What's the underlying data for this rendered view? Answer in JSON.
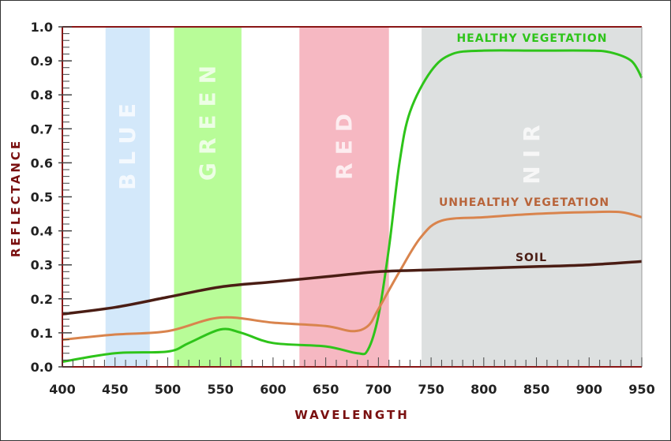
{
  "chart_data": {
    "type": "line",
    "title": "",
    "xlabel": "WAVELENGTH",
    "ylabel": "REFLECTANCE",
    "xlim": [
      400,
      950
    ],
    "ylim": [
      0,
      1.0
    ],
    "grid": false,
    "x_ticks": [
      "400",
      "450",
      "500",
      "550",
      "600",
      "650",
      "700",
      "750",
      "800",
      "850",
      "900",
      "950"
    ],
    "y_ticks": [
      "0.0",
      "0.1",
      "0.2",
      "0.3",
      "0.4",
      "0.5",
      "0.6",
      "0.7",
      "0.8",
      "0.9",
      "1.0"
    ],
    "bands": [
      {
        "name": "BLUE",
        "range": [
          441,
          483
        ],
        "color": "#d3e8fa"
      },
      {
        "name": "GREEN",
        "range": [
          506,
          570
        ],
        "color": "#b8fc98"
      },
      {
        "name": "RED",
        "range": [
          625,
          710
        ],
        "color": "#f6b8c2"
      },
      {
        "name": "NIR",
        "range": [
          741,
          950
        ],
        "color": "#dde0e0"
      }
    ],
    "series": [
      {
        "name": "HEALTHY VEGETATION",
        "color": "#2ec41a",
        "x": [
          400,
          450,
          500,
          520,
          550,
          570,
          600,
          650,
          680,
          690,
          700,
          710,
          720,
          730,
          750,
          770,
          800,
          850,
          900,
          920,
          940,
          950
        ],
        "y": [
          0.015,
          0.04,
          0.045,
          0.07,
          0.11,
          0.1,
          0.07,
          0.06,
          0.04,
          0.05,
          0.15,
          0.35,
          0.6,
          0.75,
          0.87,
          0.92,
          0.93,
          0.93,
          0.93,
          0.925,
          0.9,
          0.85
        ]
      },
      {
        "name": "UNHEALTHY VEGETATION",
        "color": "#d9844d",
        "x": [
          400,
          450,
          500,
          550,
          600,
          650,
          675,
          690,
          700,
          720,
          740,
          760,
          800,
          850,
          900,
          930,
          950
        ],
        "y": [
          0.08,
          0.095,
          0.105,
          0.145,
          0.13,
          0.12,
          0.105,
          0.12,
          0.17,
          0.28,
          0.38,
          0.43,
          0.44,
          0.45,
          0.455,
          0.455,
          0.44
        ]
      },
      {
        "name": "SOIL",
        "color": "#4a1d14",
        "x": [
          400,
          450,
          500,
          550,
          600,
          650,
          700,
          750,
          800,
          850,
          900,
          950
        ],
        "y": [
          0.155,
          0.175,
          0.205,
          0.235,
          0.25,
          0.265,
          0.28,
          0.285,
          0.29,
          0.295,
          0.3,
          0.31
        ]
      }
    ]
  }
}
